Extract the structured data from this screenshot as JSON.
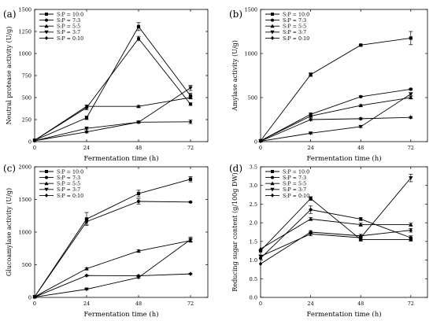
{
  "chart_data": [
    {
      "type": "line",
      "panel_label": "(a)",
      "ylabel": "Neutral protease activity (U/g)",
      "xlabel": "Fermentation time (h)",
      "x": [
        0,
        24,
        48,
        72
      ],
      "x_ticks": [
        "0",
        "24",
        "48",
        "72"
      ],
      "xlim": [
        0,
        80
      ],
      "ylim": [
        0,
        1500
      ],
      "y_ticks": [
        "0",
        "250",
        "500",
        "750",
        "1000",
        "1250",
        "1500"
      ],
      "y_tick_values": [
        0,
        250,
        500,
        750,
        1000,
        1250,
        1500
      ],
      "legend_position": "top-left",
      "series": [
        {
          "name": "S:P = 10:0",
          "marker": "square",
          "values": [
            15,
            270,
            1305,
            520
          ],
          "errors": [
            0,
            20,
            45,
            30
          ]
        },
        {
          "name": "S:P = 7:3",
          "marker": "circle",
          "values": [
            15,
            385,
            1170,
            425
          ],
          "errors": [
            0,
            25,
            25,
            15
          ]
        },
        {
          "name": "S:P = 5:5",
          "marker": "triangle-up",
          "values": [
            15,
            400,
            400,
            500
          ],
          "errors": [
            0,
            15,
            10,
            15
          ]
        },
        {
          "name": "S:P = 3:7",
          "marker": "triangle-down",
          "values": [
            10,
            150,
            220,
            610
          ],
          "errors": [
            0,
            15,
            10,
            30
          ]
        },
        {
          "name": "S:P = 0:10",
          "marker": "diamond",
          "values": [
            10,
            110,
            220,
            225
          ],
          "errors": [
            0,
            10,
            10,
            20
          ]
        }
      ]
    },
    {
      "type": "line",
      "panel_label": "(b)",
      "ylabel": "Amylase activity (U/g)",
      "xlabel": "Fermentation time (h)",
      "x": [
        0,
        24,
        48,
        72
      ],
      "x_ticks": [
        "0",
        "24",
        "48",
        "72"
      ],
      "xlim": [
        0,
        80
      ],
      "ylim": [
        0,
        1500
      ],
      "y_ticks": [
        "0",
        "500",
        "1000",
        "1500"
      ],
      "y_tick_values": [
        0,
        500,
        1000,
        1500
      ],
      "legend_position": "top-left",
      "series": [
        {
          "name": "S:P = 10:0",
          "marker": "square",
          "values": [
            10,
            760,
            1095,
            1175
          ],
          "errors": [
            0,
            20,
            10,
            75
          ]
        },
        {
          "name": "S:P = 7:3",
          "marker": "circle",
          "values": [
            10,
            310,
            510,
            595
          ],
          "errors": [
            0,
            15,
            10,
            10
          ]
        },
        {
          "name": "S:P = 5:5",
          "marker": "triangle-up",
          "values": [
            10,
            290,
            410,
            500
          ],
          "errors": [
            0,
            10,
            10,
            15
          ]
        },
        {
          "name": "S:P = 3:7",
          "marker": "triangle-down",
          "values": [
            5,
            95,
            170,
            540
          ],
          "errors": [
            0,
            10,
            10,
            15
          ]
        },
        {
          "name": "S:P = 0:10",
          "marker": "diamond",
          "values": [
            5,
            250,
            260,
            275
          ],
          "errors": [
            0,
            10,
            10,
            10
          ]
        }
      ]
    },
    {
      "type": "line",
      "panel_label": "(c)",
      "ylabel": "Glucoamylase activity (U/g)",
      "xlabel": "Fermentation time (h)",
      "x": [
        0,
        24,
        48,
        72
      ],
      "x_ticks": [
        "0",
        "24",
        "48",
        "72"
      ],
      "xlim": [
        0,
        80
      ],
      "ylim": [
        0,
        2000
      ],
      "y_ticks": [
        "0",
        "500",
        "1000",
        "1500",
        "2000"
      ],
      "y_tick_values": [
        0,
        500,
        1000,
        1500,
        2000
      ],
      "legend_position": "top-left",
      "series": [
        {
          "name": "S:P = 10:0",
          "marker": "square",
          "values": [
            10,
            1200,
            1590,
            1810
          ],
          "errors": [
            0,
            100,
            50,
            40
          ]
        },
        {
          "name": "S:P = 7:3",
          "marker": "circle",
          "values": [
            10,
            1160,
            1470,
            1460
          ],
          "errors": [
            0,
            40,
            40,
            10
          ]
        },
        {
          "name": "S:P = 5:5",
          "marker": "triangle-up",
          "values": [
            10,
            440,
            710,
            870
          ],
          "errors": [
            0,
            15,
            20,
            20
          ]
        },
        {
          "name": "S:P = 3:7",
          "marker": "triangle-down",
          "values": [
            5,
            125,
            305,
            885
          ],
          "errors": [
            0,
            10,
            10,
            40
          ]
        },
        {
          "name": "S:P = 0:10",
          "marker": "diamond",
          "values": [
            5,
            335,
            330,
            360
          ],
          "errors": [
            0,
            10,
            10,
            10
          ]
        }
      ]
    },
    {
      "type": "line",
      "panel_label": "(d)",
      "ylabel": "Reducing sugar content (g/100g DW)",
      "xlabel": "Fermentation time (h)",
      "x": [
        0,
        24,
        48,
        72
      ],
      "x_ticks": [
        "0",
        "24",
        "48",
        "72"
      ],
      "xlim": [
        0,
        80
      ],
      "ylim": [
        0,
        3.5
      ],
      "y_ticks": [
        "0.0",
        "0.5",
        "1.0",
        "1.5",
        "2.0",
        "2.5",
        "3.0",
        "3.5"
      ],
      "y_tick_values": [
        0,
        0.5,
        1.0,
        1.5,
        2.0,
        2.5,
        3.0,
        3.5
      ],
      "legend_position": "top-left",
      "series": [
        {
          "name": "S:P = 10:0",
          "marker": "square",
          "values": [
            1.25,
            2.65,
            1.55,
            1.55
          ],
          "errors": [
            0,
            0.05,
            0.04,
            0.04
          ]
        },
        {
          "name": "S:P = 7:3",
          "marker": "circle",
          "values": [
            1.05,
            2.35,
            2.1,
            1.6
          ],
          "errors": [
            0,
            0.1,
            0.04,
            0.05
          ]
        },
        {
          "name": "S:P = 5:5",
          "marker": "triangle-up",
          "values": [
            1.3,
            2.1,
            1.95,
            1.95
          ],
          "errors": [
            0,
            0.04,
            0.04,
            0.04
          ]
        },
        {
          "name": "S:P = 3:7",
          "marker": "triangle-down",
          "values": [
            1.1,
            1.7,
            1.6,
            3.2
          ],
          "errors": [
            0,
            0.05,
            0.05,
            0.1
          ]
        },
        {
          "name": "S:P = 0:10",
          "marker": "diamond",
          "values": [
            0.9,
            1.75,
            1.65,
            1.8
          ],
          "errors": [
            0,
            0.04,
            0.04,
            0.05
          ]
        }
      ]
    }
  ]
}
